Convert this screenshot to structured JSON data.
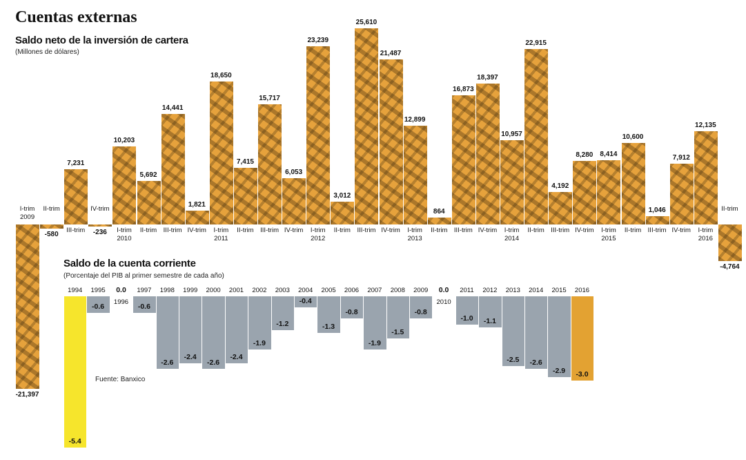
{
  "title": "Cuentas externas",
  "source": "Fuente: Banxico",
  "chart_data": [
    {
      "type": "bar",
      "title": "Saldo neto de la inversión de cartera",
      "subtitle": "(Millones de dólares)",
      "color": "#e6a23c",
      "categories": [
        "I-trim 2009",
        "II-trim",
        "III-trim",
        "IV-trim",
        "I-trim 2010",
        "II-trim",
        "III-trim",
        "IV-trim",
        "I-trim 2011",
        "II-trim",
        "III-trim",
        "IV-trim",
        "I-trim 2012",
        "II-trim",
        "III-trim",
        "IV-trim",
        "I-trim 2013",
        "II-trim",
        "III-trim",
        "IV-trim",
        "I-trim 2014",
        "II-trim",
        "III-trim",
        "IV-trim",
        "I-trim 2015",
        "II-trim",
        "III-trim",
        "IV-trim",
        "I-trim 2016",
        "II-trim"
      ],
      "values": [
        -21397,
        -580,
        7231,
        -236,
        10203,
        5692,
        14441,
        1821,
        18650,
        7415,
        15717,
        6053,
        23239,
        3012,
        25610,
        21487,
        12899,
        864,
        16873,
        18397,
        10957,
        22915,
        4192,
        8280,
        8414,
        10600,
        1046,
        7912,
        12135,
        -4764
      ],
      "value_labels": [
        "-21,397",
        "-580",
        "7,231",
        "-236",
        "10,203",
        "5,692",
        "14,441",
        "1,821",
        "18,650",
        "7,415",
        "15,717",
        "6,053",
        "23,239",
        "3,012",
        "25,610",
        "21,487",
        "12,899",
        "864",
        "16,873",
        "18,397",
        "10,957",
        "22,915",
        "4,192",
        "8,280",
        "8,414",
        "10,600",
        "1,046",
        "7,912",
        "12,135",
        "-4,764"
      ]
    },
    {
      "type": "bar",
      "title": "Saldo de la cuenta corriente",
      "subtitle": "(Porcentaje del PIB al primer semestre de cada año)",
      "categories": [
        "1994",
        "1995",
        "1996",
        "1997",
        "1998",
        "1999",
        "2000",
        "2001",
        "2002",
        "2003",
        "2004",
        "2005",
        "2006",
        "2007",
        "2008",
        "2009",
        "2010",
        "2011",
        "2012",
        "2013",
        "2014",
        "2015",
        "2016"
      ],
      "values": [
        -5.4,
        -0.6,
        0.0,
        -0.6,
        -2.6,
        -2.4,
        -2.6,
        -2.4,
        -1.9,
        -1.2,
        -0.4,
        -1.3,
        -0.8,
        -1.9,
        -1.5,
        -0.8,
        0.0,
        -1.0,
        -1.1,
        -2.5,
        -2.6,
        -2.9,
        -3.0
      ],
      "value_labels": [
        "-5.4",
        "-0.6",
        "0.0",
        "-0.6",
        "-2.6",
        "-2.4",
        "-2.6",
        "-2.4",
        "-1.9",
        "-1.2",
        "-0.4",
        "-1.3",
        "-0.8",
        "-1.9",
        "-1.5",
        "-0.8",
        "0.0",
        "-1.0",
        "-1.1",
        "-2.5",
        "-2.6",
        "-2.9",
        "-3.0"
      ],
      "colors": [
        "#f6e52c",
        "#9aa4ae",
        "#9aa4ae",
        "#9aa4ae",
        "#9aa4ae",
        "#9aa4ae",
        "#9aa4ae",
        "#9aa4ae",
        "#9aa4ae",
        "#9aa4ae",
        "#9aa4ae",
        "#9aa4ae",
        "#9aa4ae",
        "#9aa4ae",
        "#9aa4ae",
        "#9aa4ae",
        "#9aa4ae",
        "#9aa4ae",
        "#9aa4ae",
        "#9aa4ae",
        "#9aa4ae",
        "#9aa4ae",
        "#e3a232"
      ]
    }
  ]
}
